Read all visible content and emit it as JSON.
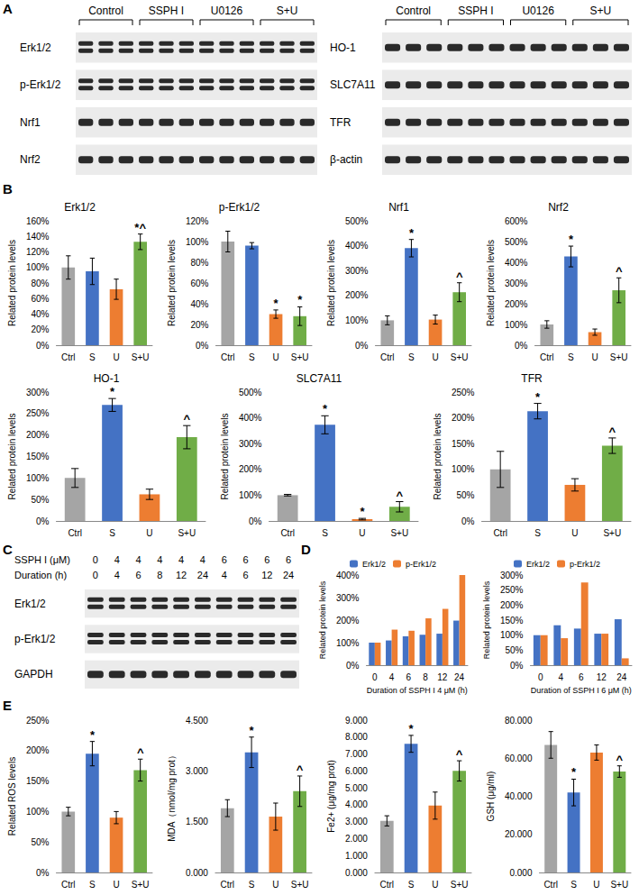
{
  "panel_labels": [
    "A",
    "B",
    "C",
    "D",
    "E"
  ],
  "blots": [
    {
      "groups": [
        "Control",
        "SSPH I",
        "U0126",
        "S+U"
      ],
      "lanes_per_group": 3,
      "rows": [
        "Erk1/2",
        "p-Erk1/2",
        "Nrf1",
        "Nrf2"
      ]
    },
    {
      "groups": [
        "Control",
        "SSPH I",
        "U0126",
        "S+U"
      ],
      "lanes_per_group": 3,
      "rows": [
        "HO-1",
        "SLC7A11",
        "TFR",
        "β-actin"
      ]
    },
    {
      "header": [
        {
          "label": "SSPH I (μM)",
          "values": [
            0,
            4,
            4,
            4,
            4,
            4,
            6,
            6,
            6,
            6
          ]
        },
        {
          "label": "Duration (h)",
          "values": [
            0,
            4,
            6,
            8,
            12,
            24,
            4,
            6,
            12,
            24
          ]
        }
      ],
      "rows": [
        "Erk1/2",
        "p-Erk1/2",
        "GAPDH"
      ]
    }
  ],
  "chart_data": [
    {
      "type": "bar",
      "title": "Erk1/2",
      "ylabel": "Related protein levels",
      "categories": [
        "Ctrl",
        "S",
        "U",
        "S+U"
      ],
      "values": [
        100,
        95,
        72,
        133
      ],
      "errors": [
        15,
        17,
        13,
        10
      ],
      "marks": [
        null,
        null,
        null,
        "*^"
      ],
      "colors": [
        "#a5a5a5",
        "#4472c4",
        "#ed7d31",
        "#70ad47"
      ],
      "ylim": [
        0,
        160
      ],
      "yticks": [
        {
          "value": 0,
          "label": "0%"
        },
        {
          "value": 20,
          "label": "20%"
        },
        {
          "value": 40,
          "label": "40%"
        },
        {
          "value": 60,
          "label": "60%"
        },
        {
          "value": 80,
          "label": "80%"
        },
        {
          "value": 100,
          "label": "100%"
        },
        {
          "value": 120,
          "label": "120%"
        },
        {
          "value": 140,
          "label": "140%"
        },
        {
          "value": 160,
          "label": "160%"
        }
      ],
      "grid": false
    },
    {
      "type": "bar",
      "title": "p-Erk1/2",
      "ylabel": "Related protein levels",
      "categories": [
        "Ctrl",
        "S",
        "U",
        "S+U"
      ],
      "values": [
        100,
        96,
        30,
        28
      ],
      "errors": [
        10,
        3,
        4,
        9
      ],
      "marks": [
        null,
        null,
        "*",
        "*"
      ],
      "colors": [
        "#a5a5a5",
        "#4472c4",
        "#ed7d31",
        "#70ad47"
      ],
      "ylim": [
        0,
        120
      ],
      "yticks": [
        {
          "value": 0,
          "label": "0%"
        },
        {
          "value": 20,
          "label": "20%"
        },
        {
          "value": 40,
          "label": "40%"
        },
        {
          "value": 60,
          "label": "60%"
        },
        {
          "value": 80,
          "label": "80%"
        },
        {
          "value": 100,
          "label": "100%"
        },
        {
          "value": 120,
          "label": "120%"
        }
      ],
      "grid": false
    },
    {
      "type": "bar",
      "title": "Nrf1",
      "ylabel": "Related protein levels",
      "categories": [
        "Ctrl",
        "S",
        "U",
        "S+U"
      ],
      "values": [
        100,
        390,
        103,
        213
      ],
      "errors": [
        18,
        35,
        18,
        38
      ],
      "marks": [
        null,
        "*",
        null,
        "^"
      ],
      "colors": [
        "#a5a5a5",
        "#4472c4",
        "#ed7d31",
        "#70ad47"
      ],
      "ylim": [
        0,
        500
      ],
      "yticks": [
        {
          "value": 0,
          "label": "0%"
        },
        {
          "value": 100,
          "label": "100%"
        },
        {
          "value": 200,
          "label": "200%"
        },
        {
          "value": 300,
          "label": "300%"
        },
        {
          "value": 400,
          "label": "400%"
        },
        {
          "value": 500,
          "label": "500%"
        }
      ],
      "grid": false
    },
    {
      "type": "bar",
      "title": "Nrf2",
      "ylabel": "Related protein levels",
      "categories": [
        "Ctrl",
        "S",
        "U",
        "S+U"
      ],
      "values": [
        100,
        428,
        63,
        265
      ],
      "errors": [
        18,
        50,
        15,
        60
      ],
      "marks": [
        null,
        "*",
        null,
        "^"
      ],
      "colors": [
        "#a5a5a5",
        "#4472c4",
        "#ed7d31",
        "#70ad47"
      ],
      "ylim": [
        0,
        600
      ],
      "yticks": [
        {
          "value": 0,
          "label": "0%"
        },
        {
          "value": 100,
          "label": "100%"
        },
        {
          "value": 200,
          "label": "200%"
        },
        {
          "value": 300,
          "label": "300%"
        },
        {
          "value": 400,
          "label": "400%"
        },
        {
          "value": 500,
          "label": "500%"
        },
        {
          "value": 600,
          "label": "600%"
        }
      ],
      "grid": false
    },
    {
      "type": "bar",
      "title": "HO-1",
      "ylabel": "Related protein levels",
      "categories": [
        "Ctrl",
        "S",
        "U",
        "S+U"
      ],
      "values": [
        100,
        270,
        62,
        195
      ],
      "errors": [
        22,
        15,
        12,
        27
      ],
      "marks": [
        null,
        "*",
        null,
        "^"
      ],
      "colors": [
        "#a5a5a5",
        "#4472c4",
        "#ed7d31",
        "#70ad47"
      ],
      "ylim": [
        0,
        300
      ],
      "yticks": [
        {
          "value": 0,
          "label": "0%"
        },
        {
          "value": 50,
          "label": "50%"
        },
        {
          "value": 100,
          "label": "100%"
        },
        {
          "value": 150,
          "label": "150%"
        },
        {
          "value": 200,
          "label": "200%"
        },
        {
          "value": 250,
          "label": "250%"
        },
        {
          "value": 300,
          "label": "300%"
        }
      ],
      "grid": false
    },
    {
      "type": "bar",
      "title": "SLC7A11",
      "ylabel": "Related protein levels",
      "categories": [
        "Ctrl",
        "S",
        "U",
        "S+U"
      ],
      "values": [
        100,
        373,
        7,
        55
      ],
      "errors": [
        3,
        35,
        3,
        20
      ],
      "marks": [
        null,
        "*",
        "*",
        "^"
      ],
      "colors": [
        "#a5a5a5",
        "#4472c4",
        "#ed7d31",
        "#70ad47"
      ],
      "ylim": [
        0,
        500
      ],
      "yticks": [
        {
          "value": 0,
          "label": "0%"
        },
        {
          "value": 100,
          "label": "100%"
        },
        {
          "value": 200,
          "label": "200%"
        },
        {
          "value": 300,
          "label": "300%"
        },
        {
          "value": 400,
          "label": "400%"
        },
        {
          "value": 500,
          "label": "500%"
        }
      ],
      "grid": false
    },
    {
      "type": "bar",
      "title": "TFR",
      "ylabel": "Related protein levels",
      "categories": [
        "Ctrl",
        "S",
        "U",
        "S+U"
      ],
      "values": [
        100,
        213,
        70,
        146
      ],
      "errors": [
        35,
        15,
        12,
        15
      ],
      "marks": [
        null,
        "*",
        null,
        "^"
      ],
      "colors": [
        "#a5a5a5",
        "#4472c4",
        "#ed7d31",
        "#70ad47"
      ],
      "ylim": [
        0,
        250
      ],
      "yticks": [
        {
          "value": 0,
          "label": "0%"
        },
        {
          "value": 50,
          "label": "50%"
        },
        {
          "value": 100,
          "label": "100%"
        },
        {
          "value": 150,
          "label": "150%"
        },
        {
          "value": 200,
          "label": "200%"
        },
        {
          "value": 250,
          "label": "250%"
        }
      ],
      "grid": false
    },
    {
      "type": "bar",
      "xlabel": "Duration of SSPH I 4 μM (h)",
      "ylabel": "Related protein levels",
      "categories": [
        "0",
        "4",
        "6",
        "8",
        "12",
        "24"
      ],
      "series": [
        {
          "name": "Erk1/2",
          "color": "#4472c4",
          "values": [
            100,
            110,
            128,
            135,
            140,
            198
          ]
        },
        {
          "name": "p-Erk1/2",
          "color": "#ed7d31",
          "values": [
            100,
            158,
            153,
            208,
            250,
            400
          ]
        }
      ],
      "legend": "top",
      "ylim": [
        0,
        400
      ],
      "yticks": [
        {
          "value": 0,
          "label": "0%"
        },
        {
          "value": 100,
          "label": "100%"
        },
        {
          "value": 200,
          "label": "200%"
        },
        {
          "value": 300,
          "label": "300%"
        },
        {
          "value": 400,
          "label": "400%"
        }
      ],
      "grid": false
    },
    {
      "type": "bar",
      "xlabel": "Duration of SSPH I 6 μM (h)",
      "ylabel": "Related protein levels",
      "categories": [
        "0",
        "4",
        "6",
        "12",
        "24"
      ],
      "series": [
        {
          "name": "Erk1/2",
          "color": "#4472c4",
          "values": [
            100,
            133,
            122,
            105,
            153
          ]
        },
        {
          "name": "p-Erk1/2",
          "color": "#ed7d31",
          "values": [
            100,
            90,
            275,
            105,
            23
          ]
        }
      ],
      "legend": "top",
      "ylim": [
        0,
        300
      ],
      "yticks": [
        {
          "value": 0,
          "label": "0%"
        },
        {
          "value": 50,
          "label": "50%"
        },
        {
          "value": 100,
          "label": "100%"
        },
        {
          "value": 150,
          "label": "150%"
        },
        {
          "value": 200,
          "label": "200%"
        },
        {
          "value": 250,
          "label": "250%"
        },
        {
          "value": 300,
          "label": "300%"
        }
      ],
      "grid": false
    },
    {
      "type": "bar",
      "ylabel": "Related ROS levels",
      "categories": [
        "Ctrl",
        "S",
        "U",
        "S+U"
      ],
      "values": [
        100,
        195,
        90,
        168
      ],
      "errors": [
        7,
        20,
        10,
        18
      ],
      "marks": [
        null,
        "*",
        null,
        "^"
      ],
      "colors": [
        "#a5a5a5",
        "#4472c4",
        "#ed7d31",
        "#70ad47"
      ],
      "ylim": [
        0,
        250
      ],
      "yticks": [
        {
          "value": 0,
          "label": "0%"
        },
        {
          "value": 50,
          "label": "50%"
        },
        {
          "value": 100,
          "label": "100%"
        },
        {
          "value": 150,
          "label": "150%"
        },
        {
          "value": 200,
          "label": "200%"
        },
        {
          "value": 250,
          "label": "250%"
        }
      ],
      "grid": false
    },
    {
      "type": "bar",
      "ylabel": "MDA（nmol/mg prot）",
      "categories": [
        "Ctrl",
        "S",
        "U",
        "S+U"
      ],
      "values": [
        1.9,
        3.55,
        1.65,
        2.4
      ],
      "errors": [
        0.25,
        0.45,
        0.4,
        0.45
      ],
      "marks": [
        null,
        "*",
        null,
        "^"
      ],
      "colors": [
        "#a5a5a5",
        "#4472c4",
        "#ed7d31",
        "#70ad47"
      ],
      "ylim": [
        0,
        4.5
      ],
      "yticks": [
        {
          "value": 0,
          "label": "0.000"
        },
        {
          "value": 1.5,
          "label": "1.500"
        },
        {
          "value": 3,
          "label": "3.000"
        },
        {
          "value": 4.5,
          "label": "4.500"
        }
      ],
      "grid": false
    },
    {
      "type": "bar",
      "ylabel": "Fe2+ (μg/mg prot)",
      "categories": [
        "Ctrl",
        "S",
        "U",
        "S+U"
      ],
      "values": [
        3.05,
        7.6,
        3.95,
        6.0
      ],
      "errors": [
        0.3,
        0.5,
        0.8,
        0.6
      ],
      "marks": [
        null,
        "*",
        null,
        "^"
      ],
      "colors": [
        "#a5a5a5",
        "#4472c4",
        "#ed7d31",
        "#70ad47"
      ],
      "ylim": [
        0,
        9
      ],
      "yticks": [
        {
          "value": 0,
          "label": "0.000"
        },
        {
          "value": 1,
          "label": "1.000"
        },
        {
          "value": 2,
          "label": "2.000"
        },
        {
          "value": 3,
          "label": "3.000"
        },
        {
          "value": 4,
          "label": "4.000"
        },
        {
          "value": 5,
          "label": "5.000"
        },
        {
          "value": 6,
          "label": "6.000"
        },
        {
          "value": 7,
          "label": "7.000"
        },
        {
          "value": 8,
          "label": "8.000"
        },
        {
          "value": 9,
          "label": "9.000"
        }
      ],
      "grid": false
    },
    {
      "type": "bar",
      "ylabel": "GSH (μg/ml)",
      "categories": [
        "Ctrl",
        "S",
        "U",
        "S+U"
      ],
      "values": [
        67,
        42,
        63,
        53
      ],
      "errors": [
        7,
        7,
        4,
        3
      ],
      "marks": [
        null,
        "*",
        null,
        "^"
      ],
      "colors": [
        "#a5a5a5",
        "#4472c4",
        "#ed7d31",
        "#70ad47"
      ],
      "ylim": [
        0,
        80
      ],
      "yticks": [
        {
          "value": 0,
          "label": "0.000"
        },
        {
          "value": 20,
          "label": "20.000"
        },
        {
          "value": 40,
          "label": "40.000"
        },
        {
          "value": 60,
          "label": "60.000"
        },
        {
          "value": 80,
          "label": "80.000"
        }
      ],
      "grid": false
    }
  ]
}
